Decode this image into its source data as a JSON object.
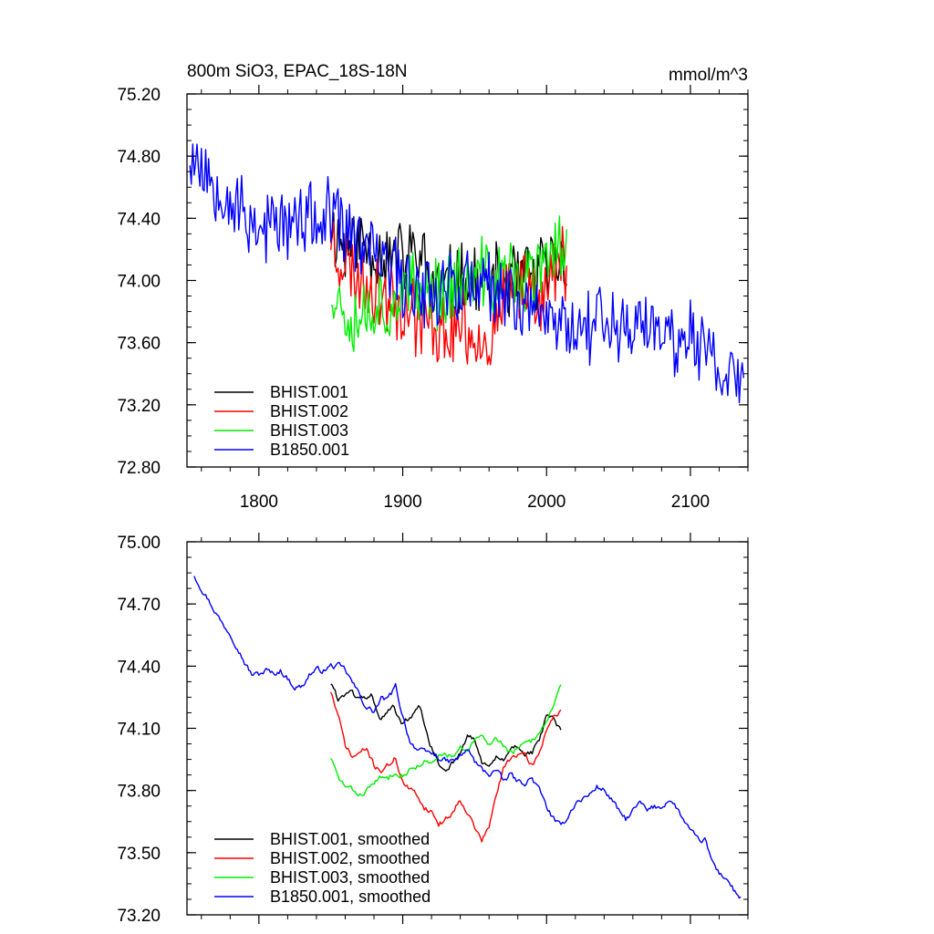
{
  "chart_data": [
    {
      "type": "line",
      "title": "800m SiO3, EPAC_18S-18N",
      "units": "mmol/m^3",
      "xlabel": "",
      "ylabel": "",
      "xlim": [
        1750,
        2140
      ],
      "ylim": [
        72.8,
        75.2
      ],
      "x_ticks": [
        1800,
        1900,
        2000,
        2100
      ],
      "x_tick_labels": [
        "1800",
        "1900",
        "2000",
        "2100"
      ],
      "y_ticks": [
        72.8,
        73.2,
        73.6,
        74.0,
        74.4,
        74.8,
        75.2
      ],
      "y_tick_labels": [
        "72.80",
        "73.20",
        "73.60",
        "74.00",
        "74.40",
        "74.80",
        "75.20"
      ],
      "legend_position": "bottom-left",
      "series": [
        {
          "name": "BHIST.001",
          "color": "#000000",
          "x": [
            1850,
            1860,
            1870,
            1880,
            1890,
            1900,
            1910,
            1920,
            1930,
            1940,
            1950,
            1960,
            1970,
            1980,
            1990,
            2000,
            2010,
            2014
          ],
          "y": [
            74.34,
            74.22,
            74.26,
            74.2,
            74.16,
            74.14,
            74.18,
            74.0,
            73.94,
            74.02,
            73.96,
            73.94,
            73.98,
            74.0,
            74.02,
            74.06,
            74.14,
            74.1
          ],
          "noise": 0.25,
          "seed": 11
        },
        {
          "name": "BHIST.002",
          "color": "#ff0000",
          "x": [
            1850,
            1860,
            1870,
            1880,
            1890,
            1900,
            1910,
            1920,
            1930,
            1940,
            1950,
            1960,
            1970,
            1980,
            1990,
            2000,
            2010,
            2014
          ],
          "y": [
            74.3,
            74.1,
            74.02,
            73.96,
            73.92,
            73.86,
            73.78,
            73.72,
            73.64,
            73.72,
            73.66,
            73.6,
            73.84,
            73.96,
            74.0,
            73.92,
            74.14,
            74.16
          ],
          "noise": 0.25,
          "seed": 23
        },
        {
          "name": "BHIST.003",
          "color": "#00ee00",
          "x": [
            1850,
            1860,
            1870,
            1880,
            1890,
            1900,
            1910,
            1920,
            1930,
            1940,
            1950,
            1960,
            1970,
            1980,
            1990,
            2000,
            2010,
            2014
          ],
          "y": [
            73.96,
            73.82,
            73.8,
            73.84,
            73.86,
            73.9,
            73.92,
            73.94,
            73.94,
            73.98,
            74.0,
            74.02,
            74.04,
            74.0,
            74.02,
            74.12,
            74.24,
            74.3
          ],
          "noise": 0.25,
          "seed": 37
        },
        {
          "name": "B1850.001",
          "color": "#0000ff",
          "x": [
            1752,
            1760,
            1770,
            1780,
            1790,
            1800,
            1820,
            1840,
            1850,
            1860,
            1880,
            1900,
            1920,
            1940,
            1960,
            1980,
            2000,
            2020,
            2040,
            2060,
            2080,
            2100,
            2120,
            2137
          ],
          "y": [
            74.82,
            74.74,
            74.64,
            74.54,
            74.42,
            74.36,
            74.36,
            74.38,
            74.38,
            74.32,
            74.16,
            74.0,
            73.96,
            73.98,
            73.92,
            73.88,
            73.78,
            73.72,
            73.76,
            73.7,
            73.68,
            73.62,
            73.46,
            73.3
          ],
          "noise": 0.25,
          "seed": 53
        }
      ]
    },
    {
      "type": "line",
      "title": "",
      "xlabel": "",
      "ylabel": "",
      "xlim": [
        1750,
        2140
      ],
      "ylim": [
        73.2,
        75.0
      ],
      "x_ticks": [
        1800,
        1900,
        2000,
        2100
      ],
      "y_ticks": [
        73.2,
        73.5,
        73.8,
        74.1,
        74.4,
        74.7,
        75.0
      ],
      "y_tick_labels": [
        "73.20",
        "73.50",
        "73.80",
        "74.10",
        "74.40",
        "74.70",
        "75.00"
      ],
      "legend_position": "bottom-left",
      "series": [
        {
          "name": "BHIST.001, smoothed",
          "color": "#000000",
          "x": [
            1850,
            1855,
            1862,
            1870,
            1878,
            1885,
            1893,
            1900,
            1907,
            1912,
            1918,
            1925,
            1930,
            1940,
            1945,
            1950,
            1955,
            1960,
            1965,
            1970,
            1975,
            1980,
            1985,
            1990,
            1995,
            2000,
            2005,
            2010
          ],
          "y": [
            74.32,
            74.24,
            74.28,
            74.24,
            74.26,
            74.14,
            74.2,
            74.12,
            74.16,
            74.2,
            74.04,
            73.92,
            73.9,
            73.98,
            74.06,
            74.04,
            73.94,
            73.9,
            73.96,
            73.94,
            74.0,
            74.02,
            73.98,
            73.98,
            74.04,
            74.16,
            74.14,
            74.08
          ],
          "noise": 0.012,
          "seed": 61
        },
        {
          "name": "BHIST.002, smoothed",
          "color": "#ff0000",
          "x": [
            1850,
            1855,
            1860,
            1865,
            1870,
            1875,
            1880,
            1885,
            1890,
            1895,
            1900,
            1905,
            1910,
            1915,
            1920,
            1925,
            1930,
            1935,
            1940,
            1945,
            1950,
            1955,
            1960,
            1965,
            1970,
            1975,
            1980,
            1985,
            1990,
            1995,
            2000,
            2005,
            2010
          ],
          "y": [
            74.28,
            74.16,
            74.02,
            73.96,
            73.98,
            74.0,
            73.92,
            73.9,
            73.92,
            73.96,
            73.84,
            73.8,
            73.78,
            73.72,
            73.7,
            73.64,
            73.66,
            73.7,
            73.76,
            73.7,
            73.62,
            73.56,
            73.62,
            73.78,
            73.9,
            73.96,
            73.98,
            73.96,
            73.92,
            73.98,
            74.1,
            74.16,
            74.18
          ],
          "noise": 0.012,
          "seed": 71
        },
        {
          "name": "BHIST.003, smoothed",
          "color": "#00ee00",
          "x": [
            1850,
            1855,
            1860,
            1865,
            1870,
            1875,
            1880,
            1885,
            1890,
            1895,
            1900,
            1905,
            1910,
            1915,
            1920,
            1925,
            1930,
            1935,
            1940,
            1945,
            1950,
            1955,
            1960,
            1965,
            1970,
            1975,
            1980,
            1985,
            1990,
            1995,
            2000,
            2005,
            2010
          ],
          "y": [
            73.96,
            73.86,
            73.82,
            73.8,
            73.78,
            73.8,
            73.84,
            73.86,
            73.86,
            73.9,
            73.88,
            73.9,
            73.92,
            73.94,
            73.92,
            73.96,
            73.98,
            73.96,
            74.0,
            73.98,
            74.04,
            74.06,
            74.02,
            74.06,
            74.02,
            73.98,
            74.0,
            74.02,
            74.04,
            74.08,
            74.14,
            74.22,
            74.3
          ],
          "noise": 0.012,
          "seed": 83
        },
        {
          "name": "B1850.001, smoothed",
          "color": "#0000ff",
          "x": [
            1755,
            1760,
            1765,
            1770,
            1775,
            1780,
            1785,
            1790,
            1795,
            1800,
            1805,
            1810,
            1815,
            1820,
            1825,
            1830,
            1835,
            1840,
            1845,
            1850,
            1855,
            1860,
            1865,
            1870,
            1875,
            1880,
            1885,
            1890,
            1895,
            1900,
            1905,
            1910,
            1915,
            1920,
            1925,
            1930,
            1935,
            1940,
            1945,
            1950,
            1955,
            1960,
            1965,
            1970,
            1975,
            1980,
            1985,
            1990,
            1995,
            2000,
            2005,
            2010,
            2015,
            2020,
            2025,
            2030,
            2035,
            2040,
            2045,
            2050,
            2055,
            2060,
            2065,
            2070,
            2075,
            2080,
            2085,
            2090,
            2095,
            2100,
            2105,
            2110,
            2115,
            2120,
            2125,
            2130,
            2135
          ],
          "y": [
            74.84,
            74.78,
            74.72,
            74.66,
            74.6,
            74.56,
            74.5,
            74.42,
            74.36,
            74.36,
            74.38,
            74.36,
            74.38,
            74.34,
            74.3,
            74.3,
            74.36,
            74.38,
            74.38,
            74.4,
            74.4,
            74.38,
            74.32,
            74.26,
            74.2,
            74.18,
            74.24,
            74.24,
            74.3,
            74.16,
            74.04,
            74.0,
            73.98,
            73.98,
            73.96,
            73.94,
            73.94,
            73.96,
            74.0,
            73.94,
            73.9,
            73.88,
            73.9,
            73.84,
            73.88,
            73.84,
            73.84,
            73.86,
            73.8,
            73.72,
            73.66,
            73.62,
            73.68,
            73.74,
            73.76,
            73.78,
            73.82,
            73.8,
            73.76,
            73.7,
            73.66,
            73.7,
            73.74,
            73.7,
            73.72,
            73.72,
            73.76,
            73.72,
            73.66,
            73.6,
            73.56,
            73.56,
            73.46,
            73.4,
            73.38,
            73.32,
            73.28
          ],
          "noise": 0.012,
          "seed": 97
        }
      ]
    }
  ]
}
